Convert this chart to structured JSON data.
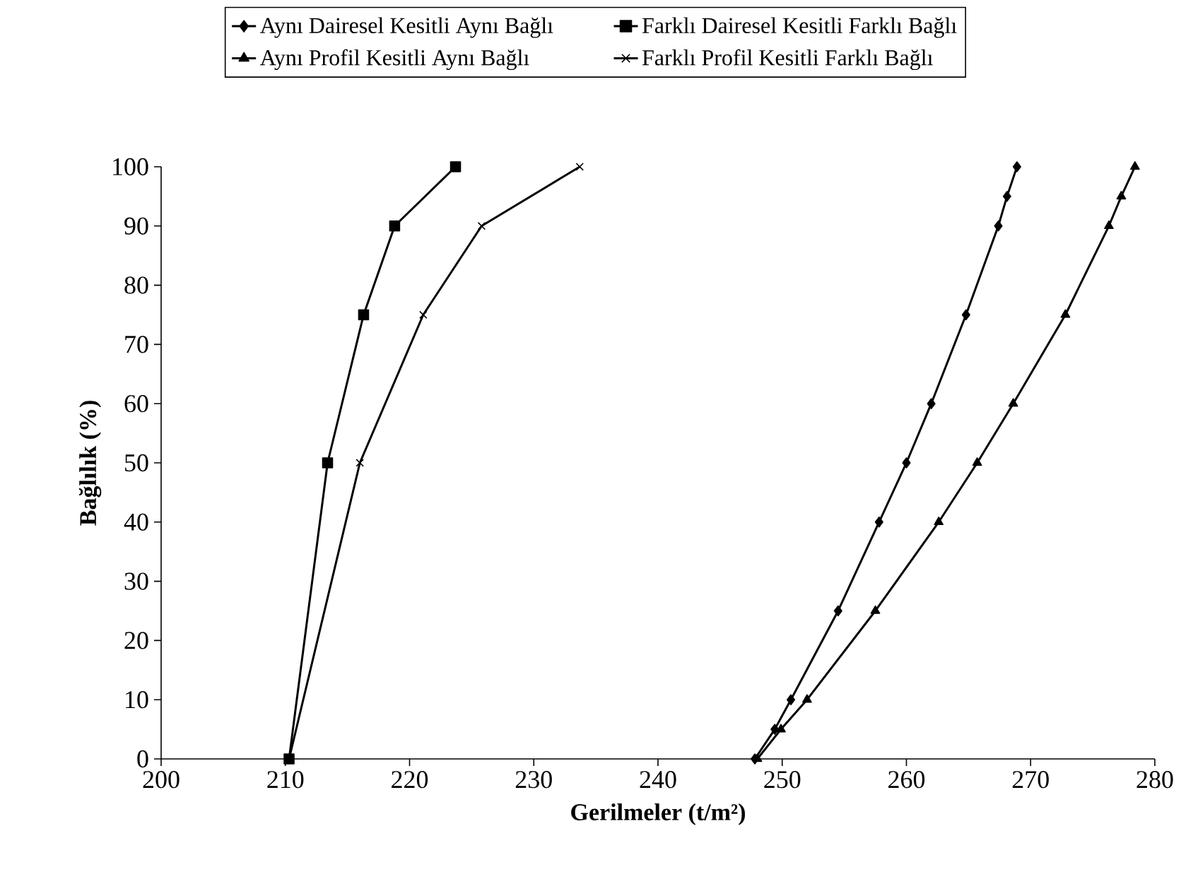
{
  "chart_data": {
    "type": "line",
    "xlabel": "Gerilmeler (t/m²)",
    "ylabel": "Bağlılık (%)",
    "xlim": [
      200,
      280
    ],
    "ylim": [
      0,
      100
    ],
    "xticks": [
      200,
      210,
      220,
      230,
      240,
      250,
      260,
      270,
      280
    ],
    "yticks": [
      0,
      10,
      20,
      30,
      40,
      50,
      60,
      70,
      80,
      90,
      100
    ],
    "legend": "top",
    "line_style": "solid",
    "series": [
      {
        "name": "Aynı Dairesel Kesitli Aynı Bağlı",
        "color": "#000000",
        "marker": "diamond",
        "x": [
          247.8,
          249.4,
          250.7,
          254.5,
          257.8,
          260.0,
          262.0,
          264.8,
          267.4,
          268.1,
          268.9
        ],
        "values": [
          0,
          5,
          10,
          25,
          40,
          50,
          60,
          75,
          90,
          95,
          100
        ]
      },
      {
        "name": "Farklı Dairesel Kesitli Farklı Bağlı",
        "color": "#000000",
        "marker": "square",
        "x": [
          210.3,
          213.4,
          216.3,
          218.8,
          223.7
        ],
        "values": [
          0,
          50,
          75,
          90,
          100
        ]
      },
      {
        "name": "Aynı Profil Kesitli Aynı Bağlı",
        "color": "#000000",
        "marker": "triangle",
        "x": [
          248.0,
          249.9,
          252.0,
          257.5,
          262.6,
          265.7,
          268.6,
          272.8,
          276.3,
          277.3,
          278.4
        ],
        "values": [
          0,
          5,
          10,
          25,
          40,
          50,
          60,
          75,
          90,
          95,
          100
        ]
      },
      {
        "name": "Farklı Profil Kesitli Farklı Bağlı",
        "color": "#000000",
        "marker": "cross",
        "x": [
          210.3,
          216.0,
          221.1,
          225.8,
          233.7
        ],
        "values": [
          0,
          50,
          75,
          90,
          100
        ]
      }
    ]
  }
}
